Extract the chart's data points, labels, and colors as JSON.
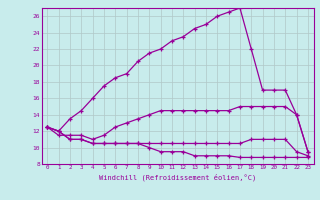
{
  "xlabel": "Windchill (Refroidissement éolien,°C)",
  "background_color": "#c8ecec",
  "line_color": "#990099",
  "grid_color": "#b0c8c8",
  "xlim": [
    -0.5,
    23.5
  ],
  "ylim": [
    8,
    27
  ],
  "xticks": [
    0,
    1,
    2,
    3,
    4,
    5,
    6,
    7,
    8,
    9,
    10,
    11,
    12,
    13,
    14,
    15,
    16,
    17,
    18,
    19,
    20,
    21,
    22,
    23
  ],
  "yticks": [
    8,
    10,
    12,
    14,
    16,
    18,
    20,
    22,
    24,
    26
  ],
  "series": [
    [
      12.5,
      12.0,
      11.0,
      11.0,
      10.5,
      10.5,
      10.5,
      10.5,
      10.5,
      10.0,
      9.5,
      9.5,
      9.5,
      9.0,
      9.0,
      9.0,
      9.0,
      8.8,
      8.8,
      8.8,
      8.8,
      8.8,
      8.8,
      8.8
    ],
    [
      12.5,
      12.0,
      11.0,
      11.0,
      10.5,
      10.5,
      10.5,
      10.5,
      10.5,
      10.5,
      10.5,
      10.5,
      10.5,
      10.5,
      10.5,
      10.5,
      10.5,
      10.5,
      11.0,
      11.0,
      11.0,
      11.0,
      9.5,
      9.0
    ],
    [
      12.5,
      11.5,
      11.5,
      11.5,
      11.0,
      11.5,
      12.5,
      13.0,
      13.5,
      14.0,
      14.5,
      14.5,
      14.5,
      14.5,
      14.5,
      14.5,
      14.5,
      15.0,
      15.0,
      15.0,
      15.0,
      15.0,
      14.0,
      9.5
    ],
    [
      12.5,
      12.0,
      13.5,
      14.5,
      16.0,
      17.5,
      18.5,
      19.0,
      20.5,
      21.5,
      22.0,
      23.0,
      23.5,
      24.5,
      25.0,
      26.0,
      26.5,
      27.0,
      22.0,
      17.0,
      17.0,
      17.0,
      14.0,
      9.5
    ]
  ]
}
